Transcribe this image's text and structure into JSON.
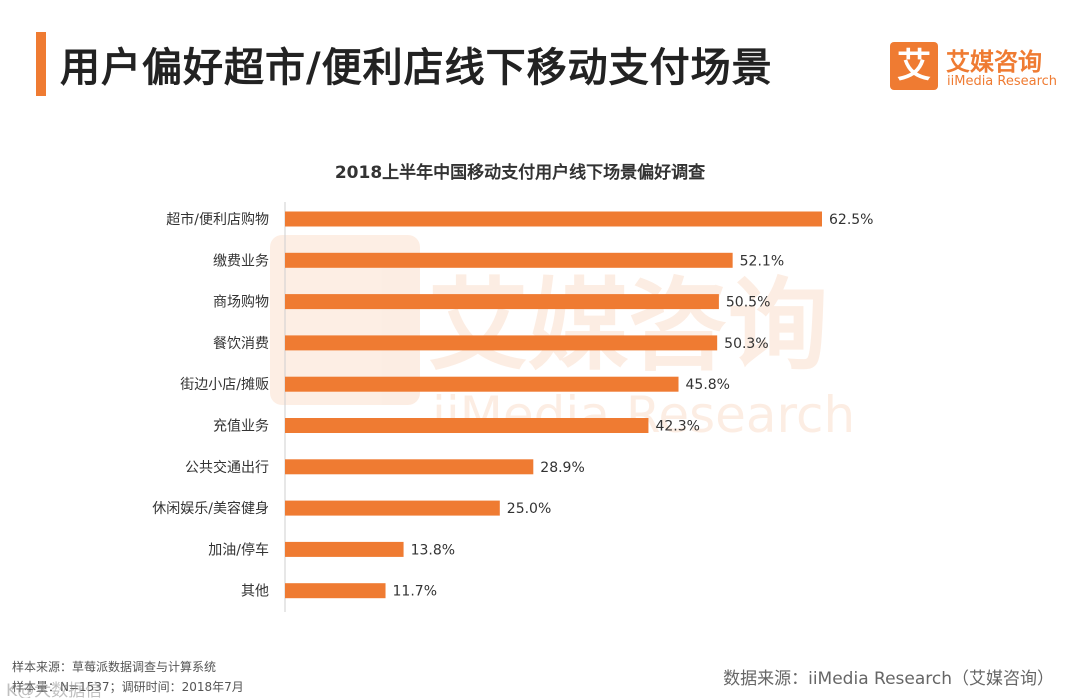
{
  "header": {
    "title": "用户偏好超市/便利店线下移动支付场景"
  },
  "logo": {
    "mark": "艾",
    "name_cn": "艾媒咨询",
    "name_en": "iiMedia Research"
  },
  "watermark": {
    "text_cn": "艾媒咨询",
    "text_en": "iiMedia Research"
  },
  "chart_data": {
    "type": "bar",
    "orientation": "horizontal",
    "title": "2018上半年中国移动支付用户线下场景偏好调查",
    "categories": [
      "超市/便利店购物",
      "缴费业务",
      "商场购物",
      "餐饮消费",
      "街边小店/摊贩",
      "充值业务",
      "公共交通出行",
      "休闲娱乐/美容健身",
      "加油/停车",
      "其他"
    ],
    "values": [
      62.5,
      52.1,
      50.5,
      50.3,
      45.8,
      42.3,
      28.9,
      25.0,
      13.8,
      11.7
    ],
    "value_labels": [
      "62.5%",
      "52.1%",
      "50.5%",
      "50.3%",
      "45.8%",
      "42.3%",
      "28.9%",
      "25.0%",
      "13.8%",
      "11.7%"
    ],
    "unit": "%",
    "xlim": [
      0,
      62.5
    ],
    "grid": false,
    "color": "#ef7b32"
  },
  "footer": {
    "sample_source": "样本来源：草莓派数据调查与计算系统",
    "sample_info": "样本量：N=1537；调研时间：2018年7月",
    "data_source": "数据来源：iiMedia Research（艾媒咨询）",
    "corner_mark": "K@大数据信"
  }
}
